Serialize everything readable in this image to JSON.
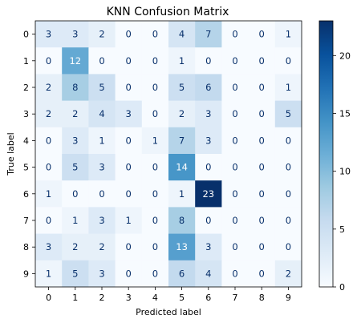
{
  "chart_data": {
    "type": "heatmap",
    "title": "KNN Confusion Matrix",
    "xlabel": "Predicted label",
    "ylabel": "True label",
    "x_categories": [
      "0",
      "1",
      "2",
      "3",
      "4",
      "5",
      "6",
      "7",
      "8",
      "9"
    ],
    "y_categories": [
      "0",
      "1",
      "2",
      "3",
      "4",
      "5",
      "6",
      "7",
      "8",
      "9"
    ],
    "matrix": [
      [
        3,
        3,
        2,
        0,
        0,
        4,
        7,
        0,
        0,
        1
      ],
      [
        0,
        12,
        0,
        0,
        0,
        1,
        0,
        0,
        0,
        0
      ],
      [
        2,
        8,
        5,
        0,
        0,
        5,
        6,
        0,
        0,
        1
      ],
      [
        2,
        2,
        4,
        3,
        0,
        2,
        3,
        0,
        0,
        5
      ],
      [
        0,
        3,
        1,
        0,
        1,
        7,
        3,
        0,
        0,
        0
      ],
      [
        0,
        5,
        3,
        0,
        0,
        14,
        0,
        0,
        0,
        0
      ],
      [
        1,
        0,
        0,
        0,
        0,
        1,
        23,
        0,
        0,
        0
      ],
      [
        0,
        1,
        3,
        1,
        0,
        8,
        0,
        0,
        0,
        0
      ],
      [
        3,
        2,
        2,
        0,
        0,
        13,
        3,
        0,
        0,
        0
      ],
      [
        1,
        5,
        3,
        0,
        0,
        6,
        4,
        0,
        0,
        2
      ]
    ],
    "colormap": "Blues",
    "vmin": 0,
    "vmax": 23,
    "colorbar_ticks": [
      0,
      5,
      10,
      15,
      20
    ],
    "colorbar_tick_labels": [
      "0",
      "5",
      "10",
      "15",
      "20"
    ],
    "grid": false
  }
}
